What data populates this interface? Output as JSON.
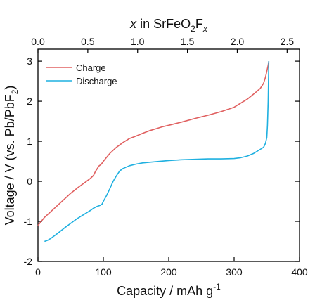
{
  "chart_data": {
    "type": "line",
    "xlabel": "Capacity / mAh g",
    "xlabel_sup": "-1",
    "ylabel": "Voltage / V (vs. Pb/PbF",
    "ylabel_sub": "2",
    "ylabel_close": ")",
    "top_xlabel": {
      "x": "x",
      "in": " in SrFeO",
      "sub1": "2",
      "F": "F",
      "sub2": "x"
    },
    "xlim": [
      0,
      400
    ],
    "ylim": [
      -2,
      3.3
    ],
    "x_ticks": [
      0,
      100,
      200,
      300,
      400
    ],
    "x_tick_labels": [
      "0",
      "100",
      "200",
      "300",
      "400"
    ],
    "y_ticks": [
      -2,
      -1,
      0,
      1,
      2,
      3
    ],
    "y_tick_labels": [
      "-2",
      "-1",
      "0",
      "1",
      "2",
      "3"
    ],
    "top_axis": {
      "ticks": [
        0.0,
        0.5,
        1.0,
        1.5,
        2.0,
        2.5
      ],
      "tick_labels": [
        "0.0",
        "0.5",
        "1.0",
        "1.5",
        "2.0",
        "2.5"
      ],
      "capacity_per_unit": 152.4
    },
    "legend": "top-left",
    "grid": false,
    "series": [
      {
        "name": "Charge",
        "color": "#e06060",
        "x": [
          0,
          5,
          10,
          20,
          30,
          40,
          50,
          60,
          70,
          80,
          85,
          88,
          90,
          93,
          97,
          100,
          105,
          110,
          120,
          130,
          140,
          150,
          160,
          170,
          180,
          190,
          200,
          220,
          240,
          260,
          280,
          300,
          320,
          330,
          340,
          345,
          348,
          350,
          352,
          353
        ],
        "y": [
          -1.1,
          -1.0,
          -0.9,
          -0.75,
          -0.6,
          -0.45,
          -0.3,
          -0.17,
          -0.05,
          0.07,
          0.15,
          0.25,
          0.3,
          0.38,
          0.43,
          0.5,
          0.6,
          0.7,
          0.85,
          0.97,
          1.07,
          1.13,
          1.2,
          1.26,
          1.31,
          1.36,
          1.4,
          1.48,
          1.57,
          1.65,
          1.74,
          1.85,
          2.05,
          2.18,
          2.32,
          2.45,
          2.6,
          2.75,
          2.9,
          3.0
        ]
      },
      {
        "name": "Discharge",
        "color": "#1fb0e0",
        "x": [
          353,
          352,
          351,
          350,
          348,
          345,
          340,
          330,
          320,
          310,
          300,
          280,
          260,
          240,
          220,
          200,
          180,
          160,
          150,
          140,
          130,
          125,
          120,
          115,
          110,
          105,
          100,
          98,
          95,
          90,
          85,
          80,
          70,
          60,
          50,
          40,
          30,
          20,
          15,
          10
        ],
        "y": [
          3.0,
          2.0,
          1.4,
          1.1,
          0.95,
          0.85,
          0.8,
          0.7,
          0.63,
          0.59,
          0.57,
          0.56,
          0.56,
          0.55,
          0.54,
          0.52,
          0.49,
          0.46,
          0.43,
          0.39,
          0.32,
          0.26,
          0.14,
          0.0,
          -0.18,
          -0.35,
          -0.5,
          -0.57,
          -0.6,
          -0.63,
          -0.67,
          -0.73,
          -0.83,
          -0.93,
          -1.05,
          -1.17,
          -1.3,
          -1.42,
          -1.47,
          -1.5
        ]
      }
    ]
  }
}
